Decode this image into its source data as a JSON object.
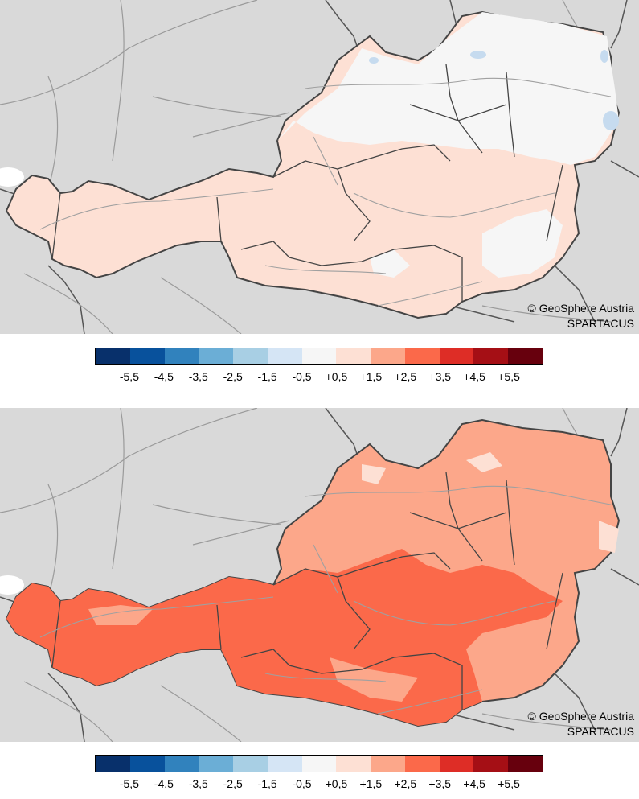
{
  "panels": [
    {
      "credit_line1": "© GeoSphere Austria",
      "credit_line2": "SPARTACUS",
      "colors": {
        "base": "#fde0d4",
        "low": "#f6f6f6",
        "high": "#fca78a"
      }
    },
    {
      "credit_line1": "© GeoSphere Austria",
      "credit_line2": "SPARTACUS",
      "colors": {
        "base": "#fca78a",
        "low": "#fde0d4",
        "high": "#fb694a"
      }
    }
  ],
  "legend": {
    "colors": [
      "#08306b",
      "#08519c",
      "#3182bd",
      "#6baed6",
      "#a8cfe4",
      "#d5e5f5",
      "#f6f6f6",
      "#fde0d4",
      "#fca78a",
      "#fb694a",
      "#de2d26",
      "#a50f15",
      "#67000d"
    ],
    "labels": [
      "-5,5",
      "-4,5",
      "-3,5",
      "-2,5",
      "-1,5",
      "-0,5",
      "+0,5",
      "+1,5",
      "+2,5",
      "+3,5",
      "+4,5",
      "+5,5"
    ]
  },
  "map_colors": {
    "background": "#d9d9d9",
    "rivers": "#9a9a9a",
    "borders": "#555555",
    "lakes": "#c6dbef"
  }
}
